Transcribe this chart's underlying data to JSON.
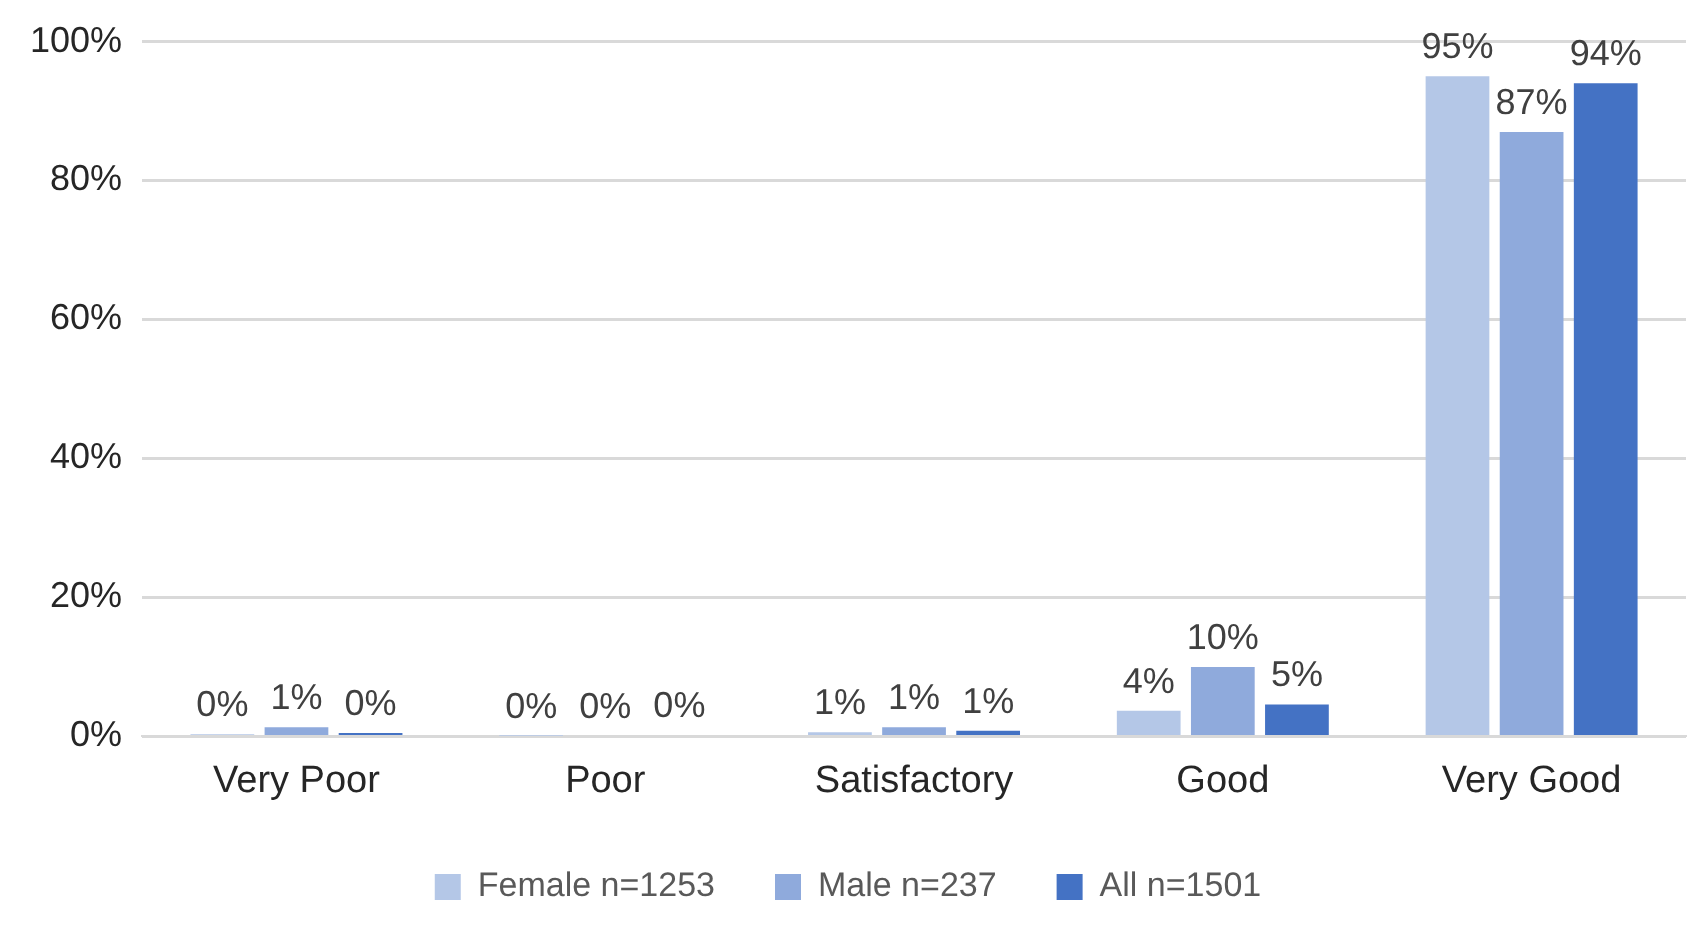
{
  "chart_data": {
    "type": "bar",
    "categories": [
      "Very Poor",
      "Poor",
      "Satisfactory",
      "Good",
      "Very Good"
    ],
    "series": [
      {
        "name": "Female n=1253",
        "color": "#b4c7e7",
        "values": [
          0.3,
          0.1,
          0.6,
          3.7,
          95
        ],
        "value_labels": [
          "0%",
          "0%",
          "1%",
          "4%",
          "95%"
        ]
      },
      {
        "name": "Male n=237",
        "color": "#8faadc",
        "values": [
          1.3,
          0,
          1.3,
          10,
          87
        ],
        "value_labels": [
          "1%",
          "0%",
          "1%",
          "10%",
          "87%"
        ]
      },
      {
        "name": "All n=1501",
        "color": "#4472c4",
        "values": [
          0.5,
          0.2,
          0.8,
          4.6,
          94
        ],
        "value_labels": [
          "0%",
          "0%",
          "1%",
          "5%",
          "94%"
        ]
      }
    ],
    "ylim": [
      0,
      100
    ],
    "yticks": [
      {
        "value": 0,
        "label": "0%"
      },
      {
        "value": 20,
        "label": "20%"
      },
      {
        "value": 40,
        "label": "40%"
      },
      {
        "value": 60,
        "label": "60%"
      },
      {
        "value": 80,
        "label": "80%"
      },
      {
        "value": 100,
        "label": "100%"
      }
    ],
    "grid": "y",
    "legend": "bottom"
  }
}
